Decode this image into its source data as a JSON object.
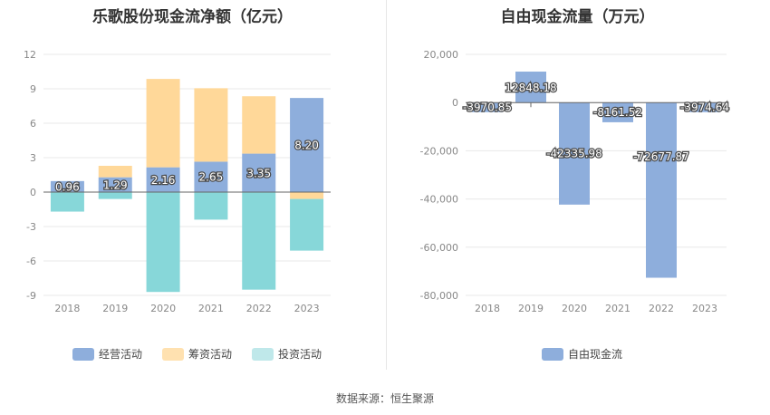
{
  "chart_data": [
    {
      "type": "bar",
      "stacked": true,
      "title": "乐歌股份现金流净额（亿元）",
      "categories": [
        "2018",
        "2019",
        "2020",
        "2021",
        "2022",
        "2023"
      ],
      "ylim": [
        -9,
        12
      ],
      "yticks": [
        "12",
        "9",
        "6",
        "3",
        "0",
        "-3",
        "-6",
        "-9"
      ],
      "ytick_values": [
        12,
        9,
        6,
        3,
        0,
        -3,
        -6,
        -9
      ],
      "series": [
        {
          "name": "经营活动",
          "color": "#8eaedc",
          "values": [
            0.96,
            1.29,
            2.16,
            2.65,
            3.35,
            8.2
          ],
          "labels": [
            "0.96",
            "1.29",
            "2.16",
            "2.65",
            "3.35",
            "8.20"
          ]
        },
        {
          "name": "筹资活动",
          "color": "#ffd899",
          "values": [
            0.0,
            1.0,
            7.7,
            6.4,
            5.0,
            -0.6
          ]
        },
        {
          "name": "投资活动",
          "color": "#87d7d9",
          "values": [
            -1.7,
            -0.6,
            -8.7,
            -2.4,
            -8.5,
            -4.5
          ]
        }
      ]
    },
    {
      "type": "bar",
      "title": "自由现金流量（万元）",
      "categories": [
        "2018",
        "2019",
        "2020",
        "2021",
        "2022",
        "2023"
      ],
      "ylim": [
        -80000,
        20000
      ],
      "yticks": [
        "20,000",
        "0",
        "-20,000",
        "-40,000",
        "-60,000",
        "-80,000"
      ],
      "ytick_values": [
        20000,
        0,
        -20000,
        -40000,
        -60000,
        -80000
      ],
      "series": [
        {
          "name": "自由现金流",
          "color": "#8eaedc",
          "values": [
            -3970.85,
            12848.18,
            -42335.98,
            -8161.52,
            -72677.87,
            -3974.64
          ],
          "labels": [
            "-3970.85",
            "12848.18",
            "-42335.98",
            "-8161.52",
            "-72677.87",
            "-3974.64"
          ]
        }
      ]
    }
  ],
  "footer": {
    "source": "数据来源：恒生聚源"
  }
}
